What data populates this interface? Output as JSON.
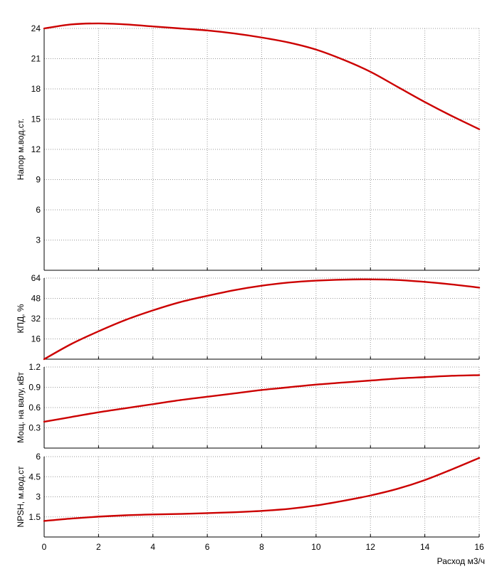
{
  "chart_data": [
    {
      "type": "line",
      "ylabel": "Напор м.вод.ст.",
      "xlabel": "",
      "xlim": [
        0,
        16
      ],
      "ylim": [
        0,
        24
      ],
      "yticks": [
        3,
        6,
        9,
        12,
        15,
        18,
        21,
        24
      ],
      "grid": true,
      "series": [
        {
          "color": "#cc0000",
          "x": [
            0,
            1,
            2,
            3,
            4,
            5,
            6,
            7,
            8,
            9,
            10,
            11,
            12,
            13,
            14,
            15,
            16
          ],
          "y": [
            24.0,
            24.4,
            24.5,
            24.4,
            24.2,
            24.0,
            23.8,
            23.5,
            23.1,
            22.6,
            21.9,
            20.9,
            19.7,
            18.2,
            16.7,
            15.3,
            14.0
          ]
        }
      ]
    },
    {
      "type": "line",
      "ylabel": "КПД, %",
      "xlabel": "",
      "xlim": [
        0,
        16
      ],
      "ylim": [
        0,
        64
      ],
      "yticks": [
        16,
        32,
        48,
        64
      ],
      "grid": true,
      "series": [
        {
          "color": "#cc0000",
          "x": [
            0,
            1,
            2,
            3,
            4,
            5,
            6,
            7,
            8,
            9,
            10,
            11,
            12,
            13,
            14,
            15,
            16
          ],
          "y": [
            0,
            12,
            22,
            31,
            38.5,
            45,
            50,
            54.5,
            58,
            60.5,
            62,
            62.8,
            63,
            62.5,
            61,
            59,
            56.5
          ]
        }
      ]
    },
    {
      "type": "line",
      "ylabel": "Мощ. на валу, кВт",
      "xlabel": "",
      "xlim": [
        0,
        16
      ],
      "ylim": [
        0,
        1.2
      ],
      "yticks": [
        0.3,
        0.6,
        0.9,
        1.2
      ],
      "grid": true,
      "series": [
        {
          "color": "#cc0000",
          "x": [
            0,
            1,
            2,
            3,
            4,
            5,
            6,
            7,
            8,
            9,
            10,
            11,
            12,
            13,
            14,
            15,
            16
          ],
          "y": [
            0.39,
            0.46,
            0.53,
            0.59,
            0.65,
            0.71,
            0.76,
            0.81,
            0.86,
            0.9,
            0.94,
            0.97,
            1.0,
            1.03,
            1.05,
            1.07,
            1.08
          ]
        }
      ]
    },
    {
      "type": "line",
      "ylabel": "NPSH, м.вод.ст",
      "xlabel": "Расход м3/ч",
      "xlim": [
        0,
        16
      ],
      "ylim": [
        0,
        6
      ],
      "yticks": [
        1.5,
        3,
        4.5,
        6
      ],
      "xticks": [
        0,
        2,
        4,
        6,
        8,
        10,
        12,
        14,
        16
      ],
      "grid": true,
      "series": [
        {
          "color": "#cc0000",
          "x": [
            0,
            1,
            2,
            3,
            4,
            5,
            6,
            7,
            8,
            9,
            10,
            11,
            12,
            13,
            14,
            15,
            16
          ],
          "y": [
            1.2,
            1.38,
            1.52,
            1.62,
            1.68,
            1.72,
            1.78,
            1.85,
            1.95,
            2.1,
            2.35,
            2.7,
            3.1,
            3.6,
            4.25,
            5.05,
            5.9
          ]
        }
      ]
    }
  ]
}
